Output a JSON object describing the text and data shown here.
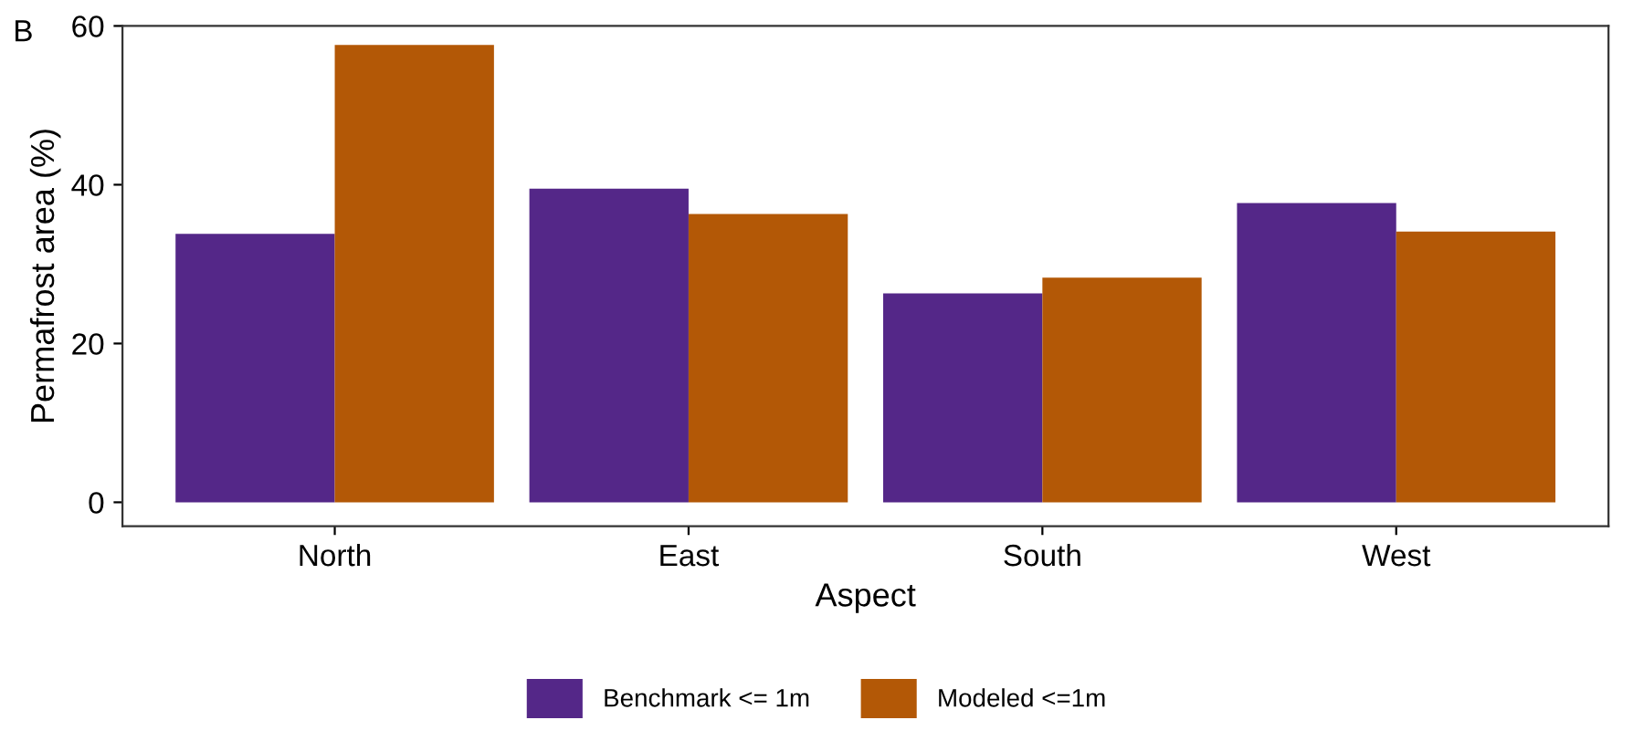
{
  "chart_data": {
    "type": "bar",
    "xlabel": "Aspect",
    "ylabel": "Permafrost area (%)",
    "annotations": [
      "B"
    ],
    "categories": [
      "North",
      "East",
      "South",
      "West"
    ],
    "series": [
      {
        "name": "Benchmark <= 1m",
        "color": "#542788",
        "values": [
          33.8,
          39.5,
          26.3,
          37.7
        ]
      },
      {
        "name": "Modeled <=1m",
        "color": "#b35806",
        "values": [
          57.6,
          36.3,
          28.3,
          34.1
        ]
      }
    ],
    "ylim": [
      -3,
      60
    ],
    "yticks": [
      0,
      20,
      40,
      60
    ],
    "grid": false,
    "legend": "bottom"
  }
}
